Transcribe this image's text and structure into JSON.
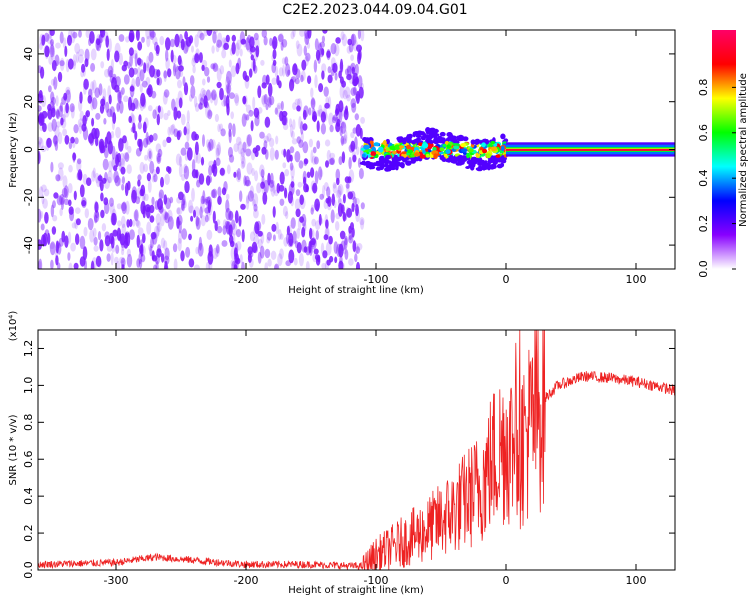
{
  "title": "C2E2.2023.044.09.04.G01",
  "chart_data": [
    {
      "type": "heatmap",
      "xlabel": "Height of straight line (km)",
      "ylabel": "Frequency (Hz)",
      "xlim": [
        -360,
        130
      ],
      "ylim": [
        -50,
        50
      ],
      "xticks": [
        -300,
        -200,
        -100,
        0,
        100
      ],
      "yticks": [
        -40,
        -20,
        0,
        20,
        40
      ],
      "colorbar": {
        "label": "Normalized spectral amplitude",
        "range": [
          0,
          1
        ],
        "ticks": [
          "0.0",
          "0.2",
          "0.4",
          "0.6",
          "0.8"
        ],
        "colors": [
          "#ffffff",
          "#8800ff",
          "#0000ff",
          "#00ffff",
          "#00ff00",
          "#ffff00",
          "#ff0000",
          "#ff0066"
        ]
      },
      "regions": [
        {
          "name": "broadband noise",
          "x": [
            -360,
            -110
          ],
          "freq_range": [
            -50,
            50
          ],
          "amplitude": [
            0.0,
            0.12
          ]
        },
        {
          "name": "signal band",
          "x": [
            -110,
            0
          ],
          "freq_range": [
            -5,
            5
          ],
          "amplitude": [
            0.3,
            0.9
          ]
        },
        {
          "name": "carrier line",
          "x": [
            0,
            130
          ],
          "freq_center": 0,
          "amplitude": [
            0.9,
            1.0
          ]
        }
      ]
    },
    {
      "type": "line",
      "xlabel": "Height of straight line (km)",
      "ylabel": "SNR (10 * v/v)",
      "scale_label": "(x10⁴)",
      "xlim": [
        -360,
        130
      ],
      "ylim": [
        0,
        1.3
      ],
      "xticks": [
        -300,
        -200,
        -100,
        0,
        100
      ],
      "yticks": [
        "0.0",
        "0.2",
        "0.4",
        "0.6",
        "0.8",
        "1.0",
        "1.2"
      ],
      "series_color": "#ee2222",
      "series": [
        {
          "x": [
            -360,
            -300,
            -270,
            -200,
            -150,
            -110,
            -100,
            -80,
            -60,
            -40,
            -20,
            -10,
            0,
            10,
            20,
            30,
            40,
            60,
            80,
            100,
            120,
            130
          ],
          "y": [
            0.03,
            0.04,
            0.07,
            0.03,
            0.03,
            0.02,
            0.08,
            0.15,
            0.22,
            0.32,
            0.45,
            0.6,
            0.7,
            0.65,
            0.8,
            0.93,
            1.0,
            1.05,
            1.04,
            1.02,
            0.99,
            0.97
          ]
        }
      ]
    }
  ]
}
